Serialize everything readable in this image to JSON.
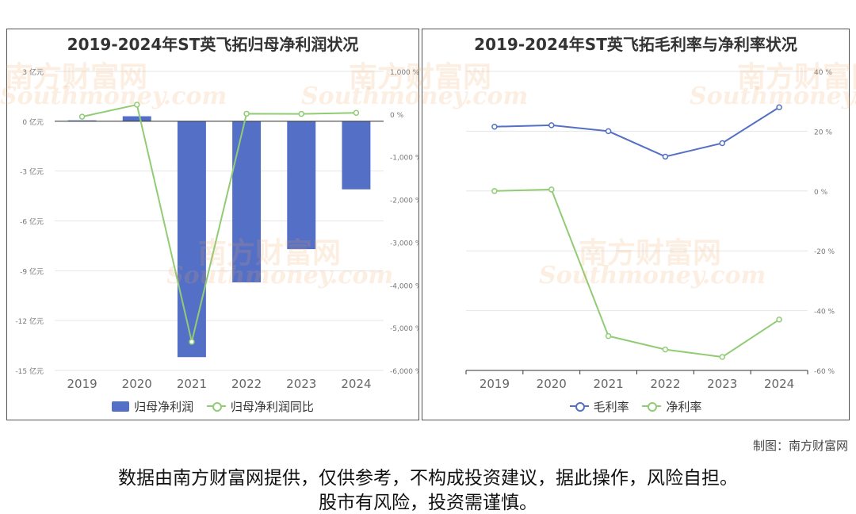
{
  "colors": {
    "bar": "#5470c6",
    "line_green": "#91cc75",
    "line_blue": "#5470c6"
  },
  "watermark": {
    "cn": "南方财富网",
    "en": "Southmoney.com"
  },
  "chart_data": [
    {
      "type": "bar",
      "title": "2019-2024年ST英飞拓归母净利润状况",
      "categories": [
        "2019",
        "2020",
        "2021",
        "2022",
        "2023",
        "2024"
      ],
      "series": [
        {
          "name": "归母净利润",
          "type": "bar",
          "axis": "left",
          "values": [
            0.05,
            0.3,
            -14.2,
            -9.7,
            -7.7,
            -4.1
          ]
        },
        {
          "name": "归母净利润同比",
          "type": "line",
          "axis": "right",
          "values": [
            -60,
            220,
            -5330,
            10,
            5,
            30
          ]
        }
      ],
      "y_left": {
        "ticks": [
          "3 亿元",
          "0 亿元",
          "-3 亿元",
          "-6 亿元",
          "-9 亿元",
          "-12 亿元",
          "-15 亿元"
        ],
        "ylim": [
          -15,
          3
        ]
      },
      "y_right": {
        "ticks": [
          "1,000 %",
          "0 %",
          "-1,000 %",
          "-2,000 %",
          "-3,000 %",
          "-4,000 %",
          "-5,000 %",
          "-6,000 %"
        ],
        "ylim": [
          -6000,
          1000
        ]
      },
      "legend": "bottom-center",
      "grid": true
    },
    {
      "type": "line",
      "title": "2019-2024年ST英飞拓毛利率与净利率状况",
      "categories": [
        "2019",
        "2020",
        "2021",
        "2022",
        "2023",
        "2024"
      ],
      "series": [
        {
          "name": "毛利率",
          "values": [
            21.5,
            22,
            20,
            11.5,
            16,
            28
          ]
        },
        {
          "name": "净利率",
          "values": [
            0,
            0.5,
            -48.5,
            -53,
            -55.5,
            -43
          ]
        }
      ],
      "y_right": {
        "ticks": [
          "40 %",
          "20 %",
          "0 %",
          "-20 %",
          "-40 %",
          "-60 %"
        ],
        "ylim": [
          -60,
          40
        ]
      },
      "legend": "bottom-center",
      "grid": true
    }
  ],
  "footer": {
    "credit": "制图：南方财富网",
    "disclaimer_line1": "数据由南方财富网提供，仅供参考，不构成投资建议，据此操作，风险自担。",
    "disclaimer_line2": "股市有风险，投资需谨慎。"
  }
}
